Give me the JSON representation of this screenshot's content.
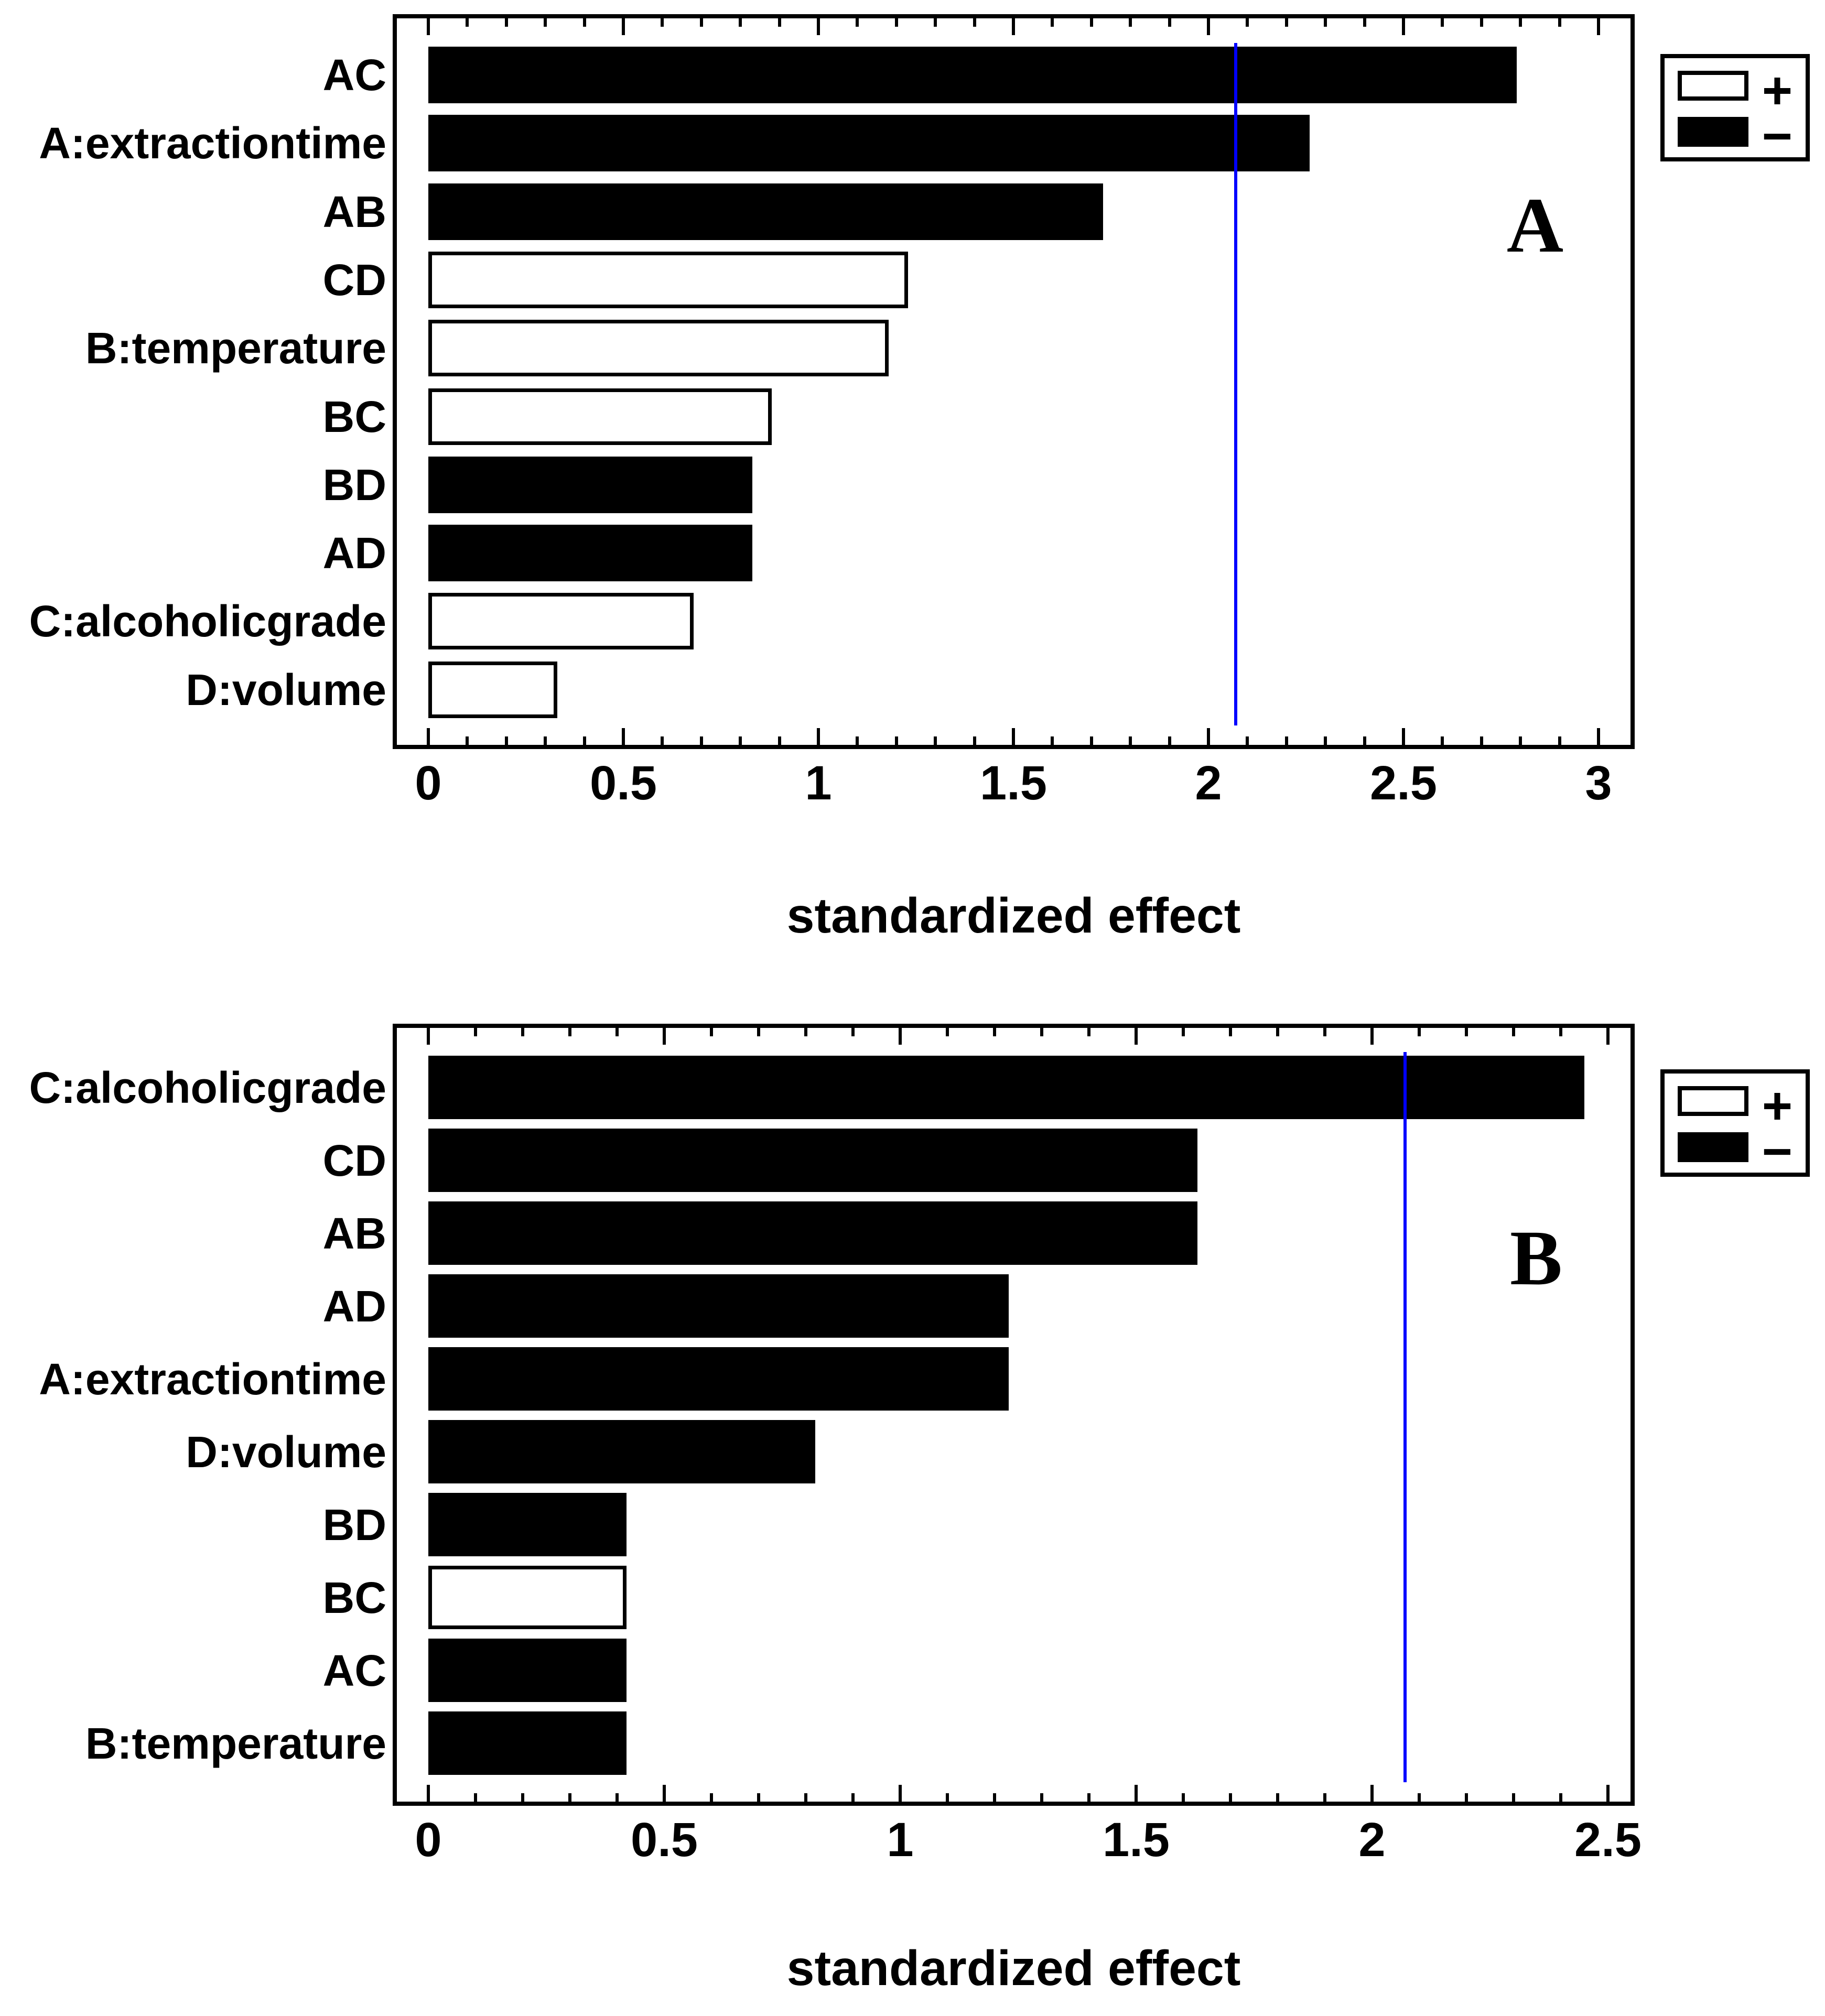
{
  "colors": {
    "reference_line": "#0000ff",
    "bar_negative_fill": "#000000",
    "bar_positive_fill": "#ffffff",
    "ink": "#000000",
    "background": "#ffffff"
  },
  "chart_data": [
    {
      "type": "bar",
      "orientation": "horizontal",
      "panel_letter": "A",
      "xlabel": "standardized effect",
      "xlim": [
        0,
        3
      ],
      "xtick_values": [
        0,
        0.5,
        1,
        1.5,
        2,
        2.5,
        3
      ],
      "xtick_labels": [
        "0",
        "0.5",
        "1",
        "1.5",
        "2",
        "2.5",
        "3"
      ],
      "minor_tick_step": 0.1,
      "grid": false,
      "reference_line": 2.07,
      "legend": {
        "plus": "+",
        "minus": "−",
        "position": "top-right-outside"
      },
      "categories": [
        "AC",
        "A:extractiontime",
        "AB",
        "CD",
        "B:temperature",
        "BC",
        "BD",
        "AD",
        "C:alcoholicgrade",
        "D:volume"
      ],
      "values": [
        2.79,
        2.26,
        1.73,
        1.23,
        1.18,
        0.88,
        0.83,
        0.83,
        0.68,
        0.33
      ],
      "signs": [
        "-",
        "-",
        "-",
        "+",
        "+",
        "+",
        "-",
        "-",
        "+",
        "+"
      ]
    },
    {
      "type": "bar",
      "orientation": "horizontal",
      "panel_letter": "B",
      "xlabel": "standardized effect",
      "xlim": [
        0,
        2.5
      ],
      "xtick_values": [
        0,
        0.5,
        1,
        1.5,
        2,
        2.5
      ],
      "xtick_labels": [
        "0",
        "0.5",
        "1",
        "1.5",
        "2",
        "2.5"
      ],
      "minor_tick_step": 0.1,
      "grid": false,
      "reference_line": 2.07,
      "legend": {
        "plus": "+",
        "minus": "−",
        "position": "top-right-outside"
      },
      "categories": [
        "C:alcoholicgrade",
        "CD",
        "AB",
        "AD",
        "A:extractiontime",
        "D:volume",
        "BD",
        "BC",
        "AC",
        "B:temperature"
      ],
      "values": [
        2.45,
        1.63,
        1.63,
        1.23,
        1.23,
        0.82,
        0.42,
        0.42,
        0.42,
        0.42
      ],
      "signs": [
        "-",
        "-",
        "-",
        "-",
        "-",
        "-",
        "-",
        "+",
        "-",
        "-"
      ]
    }
  ]
}
